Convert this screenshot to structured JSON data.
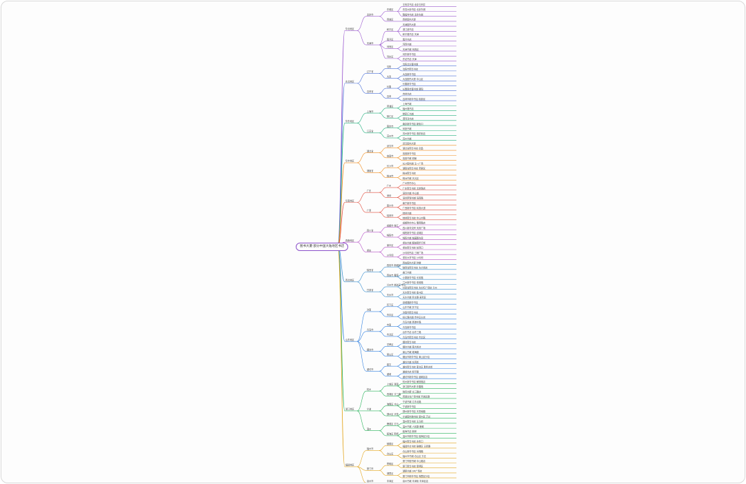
{
  "root": {
    "label": "图书大厦·部分中国大陆地区书店"
  },
  "branch_colors": [
    "#9b59d0",
    "#4a6fd8",
    "#22b07d",
    "#f08a1c",
    "#e04a3a",
    "#b54fc6",
    "#3a8fd0",
    "#2f7fe0",
    "#27b35a",
    "#e3a51c"
  ],
  "branches": [
    {
      "label": "华北地区",
      "children": [
        {
          "label": "北京市",
          "children": [
            {
              "label": "东城区",
              "leaves": [
                "王府井书店 北京王府井",
                "东四大街书店 北京东城",
                "隆福寺书店 北京东城"
              ]
            },
            {
              "label": "西城区",
              "leaves": [
                "西单图书大厦"
              ]
            }
          ]
        },
        {
          "label": "天津市",
          "children": [
            {
              "label": "和平区",
              "leaves": [
                "天津图书大厦",
                "滨江道书店",
                "和平路书店 天津"
              ]
            },
            {
              "label": "南开区",
              "leaves": [
                "南开书店"
              ]
            },
            {
              "label": "河西区",
              "leaves": [
                "河西书城",
                "天津书城 河西区"
              ]
            },
            {
              "label": "河东区",
              "leaves": [
                "河东新华书店",
                "东站书店 天津"
              ]
            }
          ]
        }
      ]
    },
    {
      "label": "东北地区",
      "children": [
        {
          "label": "辽宁省",
          "children": [
            {
              "label": "沈阳",
              "leaves": [
                "沈阳北方图书城",
                "沈阳市新华书店"
              ]
            },
            {
              "label": "大连",
              "leaves": [
                "大连新华书店",
                "大连图书大厦 中山区"
              ]
            }
          ]
        },
        {
          "label": "吉林省",
          "children": [
            {
              "label": "长春",
              "leaves": [
                "长春新华书店",
                "长春联合图书城 朝阳"
              ]
            },
            {
              "label": "吉林",
              "leaves": [
                "吉林书店",
                "吉林市新华书店 船营区"
              ]
            }
          ]
        }
      ]
    },
    {
      "label": "华东地区",
      "children": [
        {
          "label": "上海市",
          "children": [
            {
              "label": "黄浦区",
              "leaves": [
                "上海书城",
                "福州路书店"
              ]
            },
            {
              "label": "徐汇区",
              "leaves": [
                "徐家汇书城",
                "漕河泾书店"
              ]
            }
          ]
        },
        {
          "label": "江苏省",
          "children": [
            {
              "label": "南京市",
              "leaves": [
                "南京新华书店 新街口",
                "凤凰书城"
              ]
            },
            {
              "label": "苏州市",
              "leaves": [
                "苏州新华书店 观前街店",
                "苏州书城"
              ]
            }
          ]
        }
      ]
    },
    {
      "label": "华中地区",
      "children": [
        {
          "label": "湖北省",
          "children": [
            {
              "label": "武汉市",
              "leaves": [
                "武汉图书大厦",
                "湖北省新华书店 武昌"
              ]
            },
            {
              "label": "宜昌市",
              "leaves": [
                "宜昌新华书店",
                "宜昌书城 西陵"
              ]
            }
          ]
        },
        {
          "label": "湖南省",
          "children": [
            {
              "label": "长沙市",
              "leaves": [
                "长沙图书城 五一广场",
                "湖南省新华书店 芙蓉区"
              ]
            },
            {
              "label": "株洲市",
              "leaves": [
                "株洲新华书店",
                "株洲书城 天元区"
              ]
            }
          ]
        }
      ]
    },
    {
      "label": "华南地区",
      "children": [
        {
          "label": "广东",
          "children": [
            {
              "label": "广州",
              "leaves": [
                "广州购书中心",
                "广东新华书店 北京路店"
              ]
            },
            {
              "label": "深圳",
              "leaves": [
                "深圳书城 中心城",
                "深圳罗湖书城 深南路"
              ]
            }
          ]
        },
        {
          "label": "广西",
          "children": [
            {
              "label": "南宁市",
              "leaves": [
                "南宁新华书店",
                "广西新华书店 民族大道"
              ]
            },
            {
              "label": "桂林市",
              "leaves": [
                "桂林书城",
                "桂林新华书店 中山中路"
              ]
            }
          ]
        }
      ]
    },
    {
      "label": "西南地区",
      "children": [
        {
          "label": "四川省",
          "children": [
            {
              "label": "成都市 锦江",
              "leaves": [
                "成都购书中心 春熙路店",
                "四川新华文轩 天府广场"
              ]
            },
            {
              "label": "绵阳市",
              "leaves": [
                "绵阳新华书店 涪城区",
                "绵阳书城 临园路东段"
              ]
            }
          ]
        },
        {
          "label": "重庆",
          "children": [
            {
              "label": "渝中区",
              "leaves": [
                "重庆书城 解放碑步行街",
                "重庆新华书店 较场口"
              ]
            },
            {
              "label": "沙坪坝",
              "leaves": [
                "沙坪坝书店 三峡广场",
                "重庆大学书店 沙坪坝"
              ]
            }
          ]
        }
      ]
    },
    {
      "label": "西北地区",
      "children": [
        {
          "label": "陕西省",
          "children": [
            {
              "label": "西安市 新城区",
              "leaves": [
                "西安图书大厦 钟楼",
                "陕西省新华书店 东大街店"
              ]
            },
            {
              "label": "西安市 雁塔",
              "leaves": [
                "曲江书城",
                "小寨新华书店 长安路"
              ]
            }
          ]
        },
        {
          "label": "甘肃省",
          "children": [
            {
              "label": "兰州市 城关区 中心",
              "leaves": [
                "兰州新华书店 张掖路",
                "甘肃省新华书店 东方红广场店 兰州"
              ]
            },
            {
              "label": "天水市",
              "leaves": [
                "天水新华书店 秦州区",
                "天水书城 民主路 麦积区"
              ]
            }
          ]
        }
      ]
    },
    {
      "label": "山东地区",
      "children": [
        {
          "label": "济南",
          "children": [
            {
              "label": "历下区",
              "leaves": [
                "泉城路新华书店",
                "山东书城 历下区"
              ]
            },
            {
              "label": "市中区",
              "leaves": [
                "济南市新华书店",
                "经七路书城 市中区分店"
              ]
            }
          ]
        },
        {
          "label": "青岛市",
          "children": [
            {
              "label": "市南",
              "leaves": [
                "青岛书城 香港中路",
                "青岛新华书店"
              ]
            },
            {
              "label": "市北区",
              "leaves": [
                "台东书店 台东三路",
                "青岛市新华书店 市北区"
              ]
            }
          ]
        },
        {
          "label": "烟台市",
          "children": [
            {
              "label": "芝罘区",
              "leaves": [
                "烟台新华书店",
                "烟台书城 南大街店"
              ]
            },
            {
              "label": "莱山区",
              "leaves": [
                "莱山书城 观海路",
                "烟台市新华书店 莱山区分店"
              ]
            }
          ]
        },
        {
          "label": "潍坊市",
          "children": [
            {
              "label": "奎文",
              "leaves": [
                "潍坊书城 东风街",
                "潍坊新华书店 奎文区 胜利东街"
              ]
            },
            {
              "label": "潍城",
              "leaves": [
                "潍城书店 和平路",
                "潍坊市新华书店 潍城区店"
              ]
            }
          ]
        }
      ]
    },
    {
      "label": "浙江地区",
      "children": [
        {
          "label": "杭州",
          "children": [
            {
              "label": "上城区 湖滨",
              "leaves": [
                "杭州新华书店 解放路店",
                "浙江图书大厦 庆春路"
              ]
            },
            {
              "label": "西湖区 文三路",
              "leaves": [
                "晓风书屋 文三路店",
                "西湖文化广场书城 环城北路"
              ]
            }
          ]
        },
        {
          "label": "宁波",
          "children": [
            {
              "label": "海曙区 中山",
              "leaves": [
                "宁波书城 江东北路",
                "宁波新华书店"
              ]
            },
            {
              "label": "鄞州区 天童",
              "leaves": [
                "鄞州新华书店 天童南路",
                "宁波图书馆书店 鄞州区 万达"
              ]
            }
          ]
        },
        {
          "label": "温州",
          "children": [
            {
              "label": "鹿城区 五马",
              "leaves": [
                "温州新华书店 五马街",
                "温州书城 人民路 鹿城"
              ]
            },
            {
              "label": "瓯海区 新桥",
              "leaves": [
                "瓯海书店 新桥",
                "温州市新华书店 瓯海区分店"
              ]
            }
          ]
        }
      ]
    },
    {
      "label": "福建地区",
      "children": [
        {
          "label": "福州市",
          "children": [
            {
              "label": "鼓楼区",
              "leaves": [
                "福州新华书店 东街口",
                "福建外文书店 鼓楼区 五四路"
              ]
            },
            {
              "label": "仓山区",
              "leaves": [
                "仓山新华书店 对湖路",
                "福州市书城 仓山区 万达"
              ]
            }
          ]
        },
        {
          "label": "厦门市",
          "children": [
            {
              "label": "思明区",
              "leaves": [
                "厦门外图书城 中山路店",
                "厦门新华书店 思明区"
              ]
            },
            {
              "label": "湖里区",
              "leaves": [
                "湖里书城 SM广场店",
                "厦门市新华书店 湖里区分店"
              ]
            }
          ]
        },
        {
          "label": "泉州市",
          "children": [
            {
              "label": "丰泽区",
              "leaves": [
                "泉州书城 丰泽街 丰泽区店"
              ]
            }
          ]
        }
      ]
    }
  ]
}
